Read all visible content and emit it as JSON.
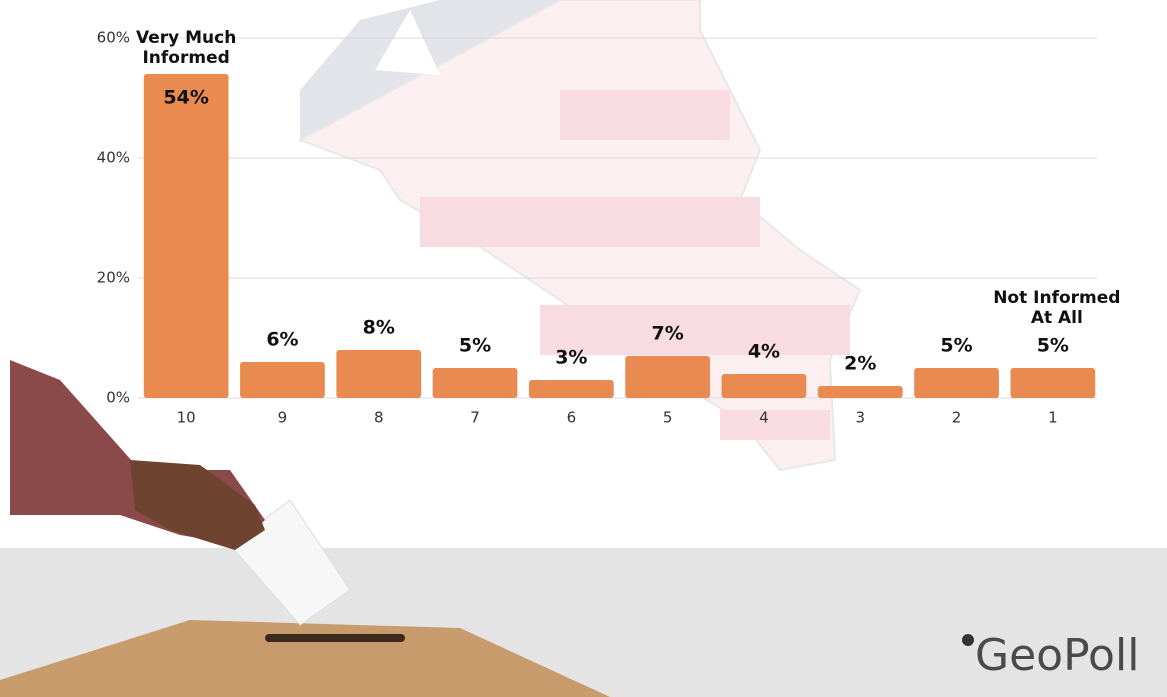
{
  "chart_data": {
    "type": "bar",
    "categories": [
      "10",
      "9",
      "8",
      "7",
      "6",
      "5",
      "4",
      "3",
      "2",
      "1"
    ],
    "values": [
      54,
      6,
      8,
      5,
      3,
      7,
      4,
      2,
      5,
      5
    ],
    "value_labels": [
      "54%",
      "6%",
      "8%",
      "5%",
      "3%",
      "7%",
      "4%",
      "2%",
      "5%",
      "5%"
    ],
    "color": "#e98a51",
    "ylim": [
      0,
      60
    ],
    "yticks": [
      {
        "value": 0,
        "label": "0%"
      },
      {
        "value": 20,
        "label": "20%"
      },
      {
        "value": 40,
        "label": "40%"
      },
      {
        "value": 60,
        "label": "60%"
      }
    ],
    "grid": true,
    "annotations": [
      "Very Much Informed",
      "Not Informed At All"
    ]
  },
  "logo": "GeoPoll"
}
